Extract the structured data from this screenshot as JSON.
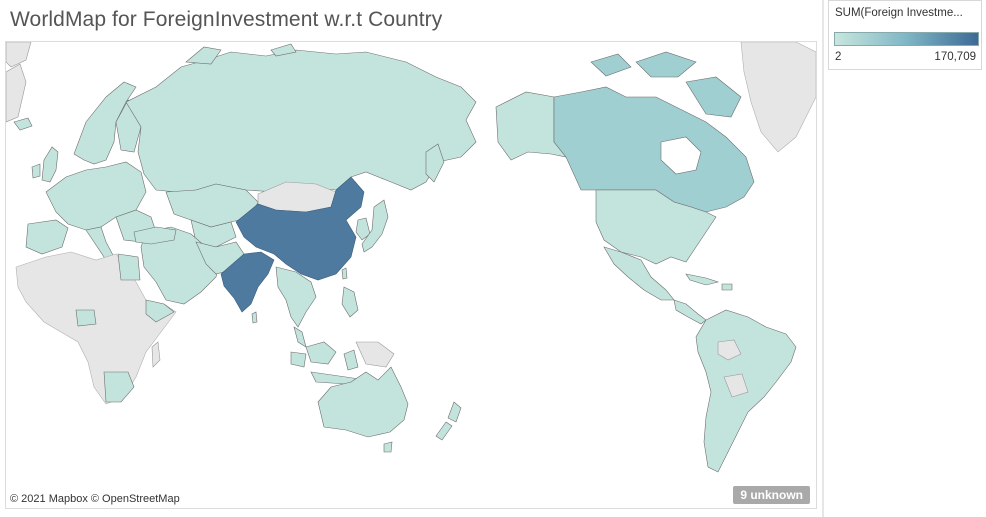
{
  "title": "WorldMap for ForeignInvestment w.r.t Country",
  "attribution": "© 2021 Mapbox © OpenStreetMap",
  "unknown_badge": "9 unknown",
  "legend": {
    "title": "SUM(Foreign Investme...",
    "min_label": "2",
    "max_label": "170,709",
    "color_low": "#c8e6dd",
    "color_high": "#3d6a95"
  },
  "colors": {
    "no_data": "#e6e6e6",
    "low": "#c3e4dc",
    "medium": "#9fcfd0",
    "high": "#4f7aa0",
    "border": "#6e6e6e"
  }
}
